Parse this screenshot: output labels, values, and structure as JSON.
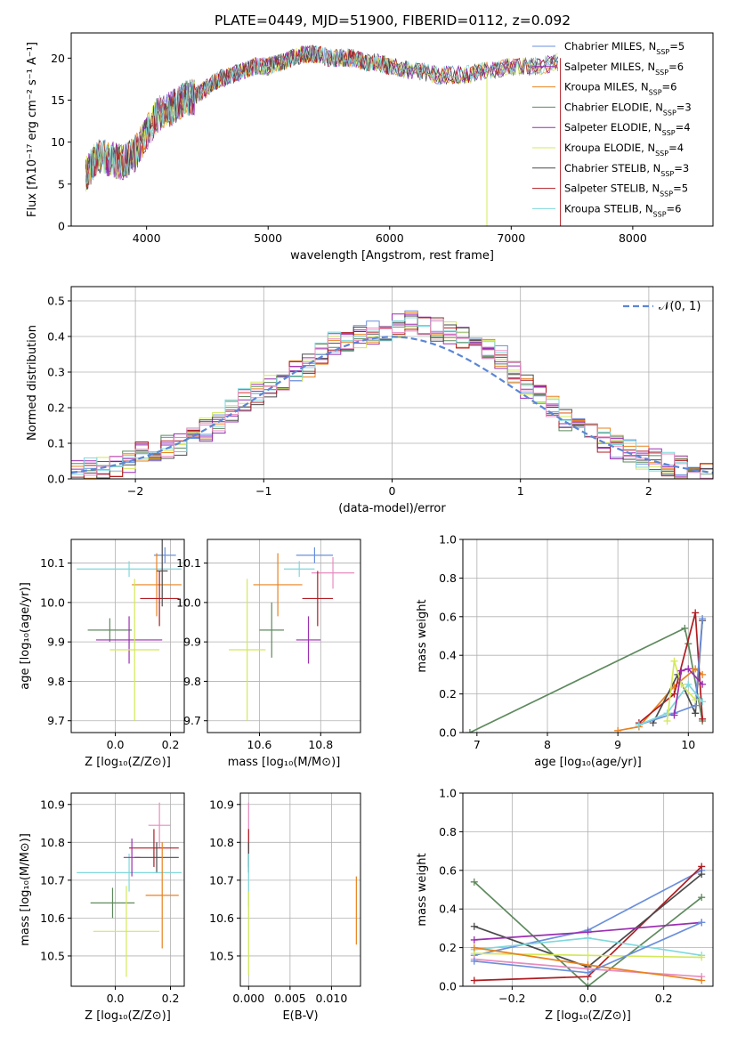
{
  "title": "PLATE=0449, MJD=51900, FIBERID=0112, z=0.092",
  "colors": {
    "chabrier_miles": "#6a8fdc",
    "salpeter_miles": "#9a2fb0",
    "kroupa_miles": "#e8821e",
    "chabrier_elodie": "#5e8a5e",
    "salpeter_elodie": "#9a2fb0",
    "kroupa_elodie": "#d4e85a",
    "chabrier_stelib": "#4a4a4a",
    "salpeter_stelib": "#b01c22",
    "kroupa_stelib": "#7fd8dc",
    "pink": "#e88cc0",
    "gauss": "#5b86d6"
  },
  "chart_data": [
    {
      "type": "line",
      "id": "spectrum",
      "xlabel": "wavelength [Angstrom, rest frame]",
      "ylabel": "Flux [fλ10⁻¹⁷ erg cm⁻² s⁻¹ A⁻¹]",
      "xlim": [
        3380,
        8660
      ],
      "ylim": [
        0,
        23
      ],
      "xticks": [
        "4000",
        "5000",
        "6000",
        "7000",
        "8000"
      ],
      "xtickvals": [
        4000,
        5000,
        6000,
        7000,
        8000
      ],
      "yticks": [
        "0",
        "5",
        "10",
        "15",
        "20"
      ],
      "ytickvals": [
        0,
        5,
        10,
        15,
        20
      ],
      "x": [
        3500,
        3600,
        3700,
        3800,
        3900,
        4000,
        4100,
        4200,
        4300,
        4400,
        4500,
        4600,
        4700,
        4800,
        4900,
        5000,
        5100,
        5200,
        5300,
        5400,
        5500,
        5600,
        5700,
        5800,
        5900,
        6000,
        6200,
        6400,
        6600,
        6800,
        7000,
        7200,
        7400
      ],
      "y": [
        6,
        8.5,
        8,
        7.5,
        8.5,
        11,
        13.5,
        14,
        15,
        15.5,
        16.5,
        17.5,
        18,
        18.5,
        19,
        19,
        19.5,
        20,
        20.5,
        20.5,
        20,
        20,
        20,
        19.5,
        19.5,
        19,
        18.5,
        18,
        18,
        18.5,
        19,
        19,
        19.5
      ],
      "legend": [
        "Chabrier MILES, N_SSP=5",
        "Salpeter MILES, N_SSP=6",
        "Kroupa MILES, N_SSP=6",
        "Chabrier ELODIE, N_SSP=3",
        "Salpeter ELODIE, N_SSP=4",
        "Kroupa ELODIE, N_SSP=4",
        "Chabrier STELIB, N_SSP=3",
        "Salpeter STELIB, N_SSP=5",
        "Kroupa STELIB, N_SSP=6"
      ],
      "legend_placement": "top-right",
      "grid": false
    },
    {
      "type": "histogram",
      "id": "residuals",
      "xlabel": "(data-model)/error",
      "ylabel": "Normed distribution",
      "xlim": [
        -2.5,
        2.5
      ],
      "ylim": [
        0,
        0.54
      ],
      "xticks": [
        "−2",
        "−1",
        "0",
        "1",
        "2"
      ],
      "xtickvals": [
        -2,
        -1,
        0,
        1,
        2
      ],
      "yticks": [
        "0.0",
        "0.1",
        "0.2",
        "0.3",
        "0.4",
        "0.5"
      ],
      "ytickvals": [
        0,
        0.1,
        0.2,
        0.3,
        0.4,
        0.5
      ],
      "bin_width": 0.1,
      "bin_start": -2.5,
      "values": [
        0.02,
        0.025,
        0.03,
        0.04,
        0.05,
        0.07,
        0.08,
        0.09,
        0.1,
        0.12,
        0.14,
        0.16,
        0.19,
        0.22,
        0.24,
        0.26,
        0.28,
        0.3,
        0.32,
        0.35,
        0.38,
        0.39,
        0.4,
        0.41,
        0.42,
        0.43,
        0.44,
        0.43,
        0.42,
        0.41,
        0.4,
        0.39,
        0.37,
        0.34,
        0.3,
        0.26,
        0.23,
        0.2,
        0.17,
        0.15,
        0.13,
        0.11,
        0.09,
        0.08,
        0.06,
        0.05,
        0.04,
        0.03,
        0.025,
        0.02
      ],
      "gauss_label": "𝒩(0, 1)",
      "legend_placement": "top-right",
      "grid": true
    },
    {
      "type": "scatter",
      "id": "age_vs_Z",
      "xlabel": "Z [log₁₀(Z/Z⊙)]",
      "ylabel": "age  [log₁₀(age/yr)]",
      "xlim": [
        -0.16,
        0.25
      ],
      "ylim": [
        9.67,
        10.16
      ],
      "xticks": [
        "0.0",
        "0.2"
      ],
      "xtickvals": [
        0,
        0.2
      ],
      "yticks": [
        "9.7",
        "9.8",
        "9.9",
        "10.0",
        "10.1"
      ],
      "ytickvals": [
        9.7,
        9.8,
        9.9,
        10.0,
        10.1
      ],
      "points": [
        {
          "c": "chabrier_miles",
          "x": 0.18,
          "y": 10.12,
          "xe": 0.04,
          "ye": 0.02
        },
        {
          "c": "kroupa_stelib",
          "x": 0.05,
          "y": 10.085,
          "xe": 0.19,
          "ye": 0.02
        },
        {
          "c": "kroupa_miles",
          "x": 0.15,
          "y": 10.045,
          "xe": 0.09,
          "ye": 0.08
        },
        {
          "c": "salpeter_stelib",
          "x": 0.16,
          "y": 10.01,
          "xe": 0.07,
          "ye": 0.07
        },
        {
          "c": "chabrier_stelib",
          "x": 0.17,
          "y": 10.08,
          "xe": 0.02,
          "ye": 0.09
        },
        {
          "c": "chabrier_elodie",
          "x": -0.02,
          "y": 9.93,
          "xe": 0.08,
          "ye": 0.03
        },
        {
          "c": "salpeter_elodie",
          "x": 0.05,
          "y": 9.905,
          "xe": 0.12,
          "ye": 0.06
        },
        {
          "c": "kroupa_elodie",
          "x": 0.07,
          "y": 9.88,
          "xe": 0.09,
          "ye": 0.18
        }
      ],
      "grid": true
    },
    {
      "type": "scatter",
      "id": "age_vs_mass",
      "xlabel": "mass [log₁₀(M/M⊙)]",
      "ylabel": "",
      "xlim": [
        10.43,
        10.93
      ],
      "ylim": [
        9.67,
        10.16
      ],
      "xticks": [
        "10.6",
        "10.8"
      ],
      "xtickvals": [
        10.6,
        10.8
      ],
      "yticks": [
        "9.7",
        "9.8",
        "9.9",
        "10.0",
        "10.1"
      ],
      "ytickvals": [
        9.7,
        9.8,
        9.9,
        10.0,
        10.1
      ],
      "points": [
        {
          "c": "chabrier_miles",
          "x": 10.78,
          "y": 10.12,
          "xe": 0.06,
          "ye": 0.02
        },
        {
          "c": "kroupa_stelib",
          "x": 10.73,
          "y": 10.085,
          "xe": 0.05,
          "ye": 0.02
        },
        {
          "c": "pink",
          "x": 10.84,
          "y": 10.075,
          "xe": 0.07,
          "ye": 0.04
        },
        {
          "c": "kroupa_miles",
          "x": 10.66,
          "y": 10.045,
          "xe": 0.08,
          "ye": 0.08
        },
        {
          "c": "salpeter_stelib",
          "x": 10.79,
          "y": 10.01,
          "xe": 0.05,
          "ye": 0.07
        },
        {
          "c": "chabrier_elodie",
          "x": 10.64,
          "y": 9.93,
          "xe": 0.04,
          "ye": 0.07
        },
        {
          "c": "salpeter_elodie",
          "x": 10.76,
          "y": 9.905,
          "xe": 0.04,
          "ye": 0.06
        },
        {
          "c": "kroupa_elodie",
          "x": 10.56,
          "y": 9.88,
          "xe": 0.06,
          "ye": 0.18
        }
      ],
      "grid": true
    },
    {
      "type": "line",
      "id": "weight_vs_age",
      "xlabel": "age  [log₁₀(age/yr)]",
      "ylabel": "mass weight",
      "xlim": [
        6.8,
        10.35
      ],
      "ylim": [
        0,
        1.0
      ],
      "xticks": [
        "7",
        "8",
        "9",
        "10"
      ],
      "xtickvals": [
        7,
        8,
        9,
        10
      ],
      "yticks": [
        "0.0",
        "0.2",
        "0.4",
        "0.6",
        "0.8",
        "1.0"
      ],
      "ytickvals": [
        0,
        0.2,
        0.4,
        0.6,
        0.8,
        1.0
      ],
      "series": [
        {
          "c": "chabrier_elodie",
          "x": [
            6.9,
            9.95,
            10.0,
            10.2
          ],
          "y": [
            0.0,
            0.54,
            0.46,
            0.06
          ]
        },
        {
          "c": "kroupa_miles",
          "x": [
            9.0,
            9.3,
            9.8,
            10.1,
            10.2
          ],
          "y": [
            0.01,
            0.03,
            0.24,
            0.33,
            0.3
          ]
        },
        {
          "c": "salpeter_stelib",
          "x": [
            9.3,
            9.8,
            10.1,
            10.2
          ],
          "y": [
            0.05,
            0.2,
            0.62,
            0.07
          ]
        },
        {
          "c": "chabrier_stelib",
          "x": [
            9.5,
            9.85,
            10.1,
            10.2
          ],
          "y": [
            0.05,
            0.3,
            0.1,
            0.58
          ]
        },
        {
          "c": "chabrier_miles",
          "x": [
            9.3,
            9.8,
            10.1,
            10.2
          ],
          "y": [
            0.04,
            0.1,
            0.14,
            0.59
          ]
        },
        {
          "c": "kroupa_stelib",
          "x": [
            9.3,
            9.7,
            10.0,
            10.2
          ],
          "y": [
            0.04,
            0.1,
            0.25,
            0.16
          ]
        },
        {
          "c": "kroupa_elodie",
          "x": [
            9.7,
            9.8,
            9.9,
            10.1
          ],
          "y": [
            0.06,
            0.37,
            0.25,
            0.17
          ]
        },
        {
          "c": "salpeter_elodie",
          "x": [
            9.8,
            9.9,
            10.0,
            10.2
          ],
          "y": [
            0.09,
            0.32,
            0.33,
            0.25
          ]
        }
      ],
      "grid": true
    },
    {
      "type": "scatter",
      "id": "mass_vs_Z",
      "xlabel": "Z [log₁₀(Z/Z⊙)]",
      "ylabel": "mass [log₁₀(M/M⊙)]",
      "xlim": [
        -0.16,
        0.25
      ],
      "ylim": [
        10.42,
        10.93
      ],
      "xticks": [
        "0.0",
        "0.2"
      ],
      "xtickvals": [
        0,
        0.2
      ],
      "yticks": [
        "10.5",
        "10.6",
        "10.7",
        "10.8",
        "10.9"
      ],
      "ytickvals": [
        10.5,
        10.6,
        10.7,
        10.8,
        10.9
      ],
      "points": [
        {
          "c": "pink",
          "x": 0.16,
          "y": 10.845,
          "xe": 0.04,
          "ye": 0.06
        },
        {
          "c": "salpeter_stelib",
          "x": 0.14,
          "y": 10.785,
          "xe": 0.09,
          "ye": 0.05
        },
        {
          "c": "chabrier_stelib",
          "x": 0.15,
          "y": 10.76,
          "xe": 0.08,
          "ye": 0.04
        },
        {
          "c": "kroupa_stelib",
          "x": 0.05,
          "y": 10.72,
          "xe": 0.19,
          "ye": 0.05
        },
        {
          "c": "kroupa_miles",
          "x": 0.17,
          "y": 10.66,
          "xe": 0.06,
          "ye": 0.14
        },
        {
          "c": "chabrier_elodie",
          "x": -0.01,
          "y": 10.64,
          "xe": 0.08,
          "ye": 0.04
        },
        {
          "c": "salpeter_elodie",
          "x": 0.06,
          "y": 10.76,
          "xe": 0.03,
          "ye": 0.05
        },
        {
          "c": "kroupa_elodie",
          "x": 0.04,
          "y": 10.565,
          "xe": 0.12,
          "ye": 0.12
        }
      ],
      "grid": true
    },
    {
      "type": "scatter",
      "id": "mass_vs_ebv",
      "xlabel": "E(B-V)",
      "ylabel": "",
      "xlim": [
        -0.001,
        0.0135
      ],
      "ylim": [
        10.42,
        10.93
      ],
      "xticks": [
        "0.000",
        "0.005",
        "0.010"
      ],
      "xtickvals": [
        0,
        0.005,
        0.01
      ],
      "yticks": [
        "10.5",
        "10.6",
        "10.7",
        "10.8",
        "10.9"
      ],
      "ytickvals": [
        10.5,
        10.6,
        10.7,
        10.8,
        10.9
      ],
      "points": [
        {
          "c": "pink",
          "x": 0.0,
          "y": 10.845,
          "xe": 0.0,
          "ye": 0.06
        },
        {
          "c": "salpeter_stelib",
          "x": 0.0,
          "y": 10.785,
          "xe": 0.0,
          "ye": 0.05
        },
        {
          "c": "chabrier_stelib",
          "x": 0.0,
          "y": 10.76,
          "xe": 0.0,
          "ye": 0.04
        },
        {
          "c": "kroupa_stelib",
          "x": 0.0,
          "y": 10.7,
          "xe": 0.0,
          "ye": 0.07
        },
        {
          "c": "kroupa_elodie",
          "x": 0.0,
          "y": 10.56,
          "xe": 0.0,
          "ye": 0.11
        },
        {
          "c": "kroupa_miles",
          "x": 0.013,
          "y": 10.62,
          "xe": 0.0,
          "ye": 0.09
        }
      ],
      "grid": true
    },
    {
      "type": "line",
      "id": "weight_vs_Z",
      "xlabel": "Z [log₁₀(Z/Z⊙)]",
      "ylabel": "mass weight",
      "xlim": [
        -0.33,
        0.33
      ],
      "ylim": [
        0,
        1.0
      ],
      "xticks": [
        "−0.2",
        "0.0",
        "0.2"
      ],
      "xtickvals": [
        -0.2,
        0,
        0.2
      ],
      "yticks": [
        "0.0",
        "0.2",
        "0.4",
        "0.6",
        "0.8",
        "1.0"
      ],
      "ytickvals": [
        0,
        0.2,
        0.4,
        0.6,
        0.8,
        1.0
      ],
      "series": [
        {
          "c": "chabrier_elodie",
          "x": [
            -0.3,
            0.0,
            0.3
          ],
          "y": [
            0.54,
            0.0,
            0.46
          ]
        },
        {
          "c": "chabrier_miles",
          "x": [
            -0.3,
            0.0,
            0.3
          ],
          "y": [
            0.16,
            0.29,
            0.6
          ]
        },
        {
          "c": "salpeter_stelib",
          "x": [
            -0.3,
            0.0,
            0.3
          ],
          "y": [
            0.03,
            0.05,
            0.62
          ]
        },
        {
          "c": "chabrier_stelib",
          "x": [
            -0.3,
            0.0,
            0.3
          ],
          "y": [
            0.31,
            0.1,
            0.58
          ]
        },
        {
          "c": "salpeter_elodie",
          "x": [
            -0.3,
            0.0,
            0.3
          ],
          "y": [
            0.24,
            0.28,
            0.33
          ]
        },
        {
          "c": "kroupa_stelib",
          "x": [
            -0.3,
            0.0,
            0.3
          ],
          "y": [
            0.19,
            0.25,
            0.16
          ]
        },
        {
          "c": "kroupa_elodie",
          "x": [
            -0.3,
            0.0,
            0.3
          ],
          "y": [
            0.17,
            0.16,
            0.15
          ]
        },
        {
          "c": "pink",
          "x": [
            -0.3,
            0.0,
            0.3
          ],
          "y": [
            0.14,
            0.09,
            0.05
          ]
        },
        {
          "c": "kroupa_miles",
          "x": [
            -0.3,
            0.0,
            0.3
          ],
          "y": [
            0.2,
            0.11,
            0.03
          ]
        },
        {
          "c": "chabrier_miles",
          "x": [
            -0.3,
            0.0,
            0.3
          ],
          "y": [
            0.13,
            0.07,
            0.33
          ]
        }
      ],
      "grid": true
    }
  ]
}
